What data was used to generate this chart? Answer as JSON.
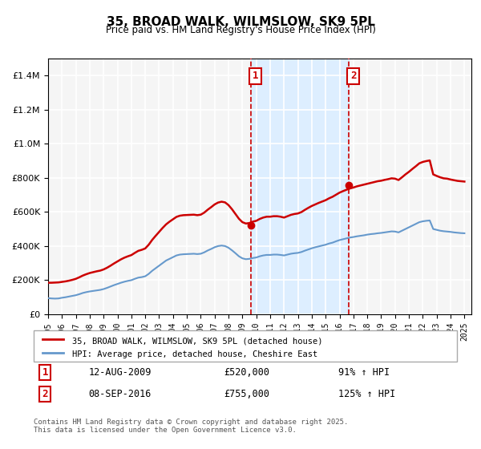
{
  "title": "35, BROAD WALK, WILMSLOW, SK9 5PL",
  "subtitle": "Price paid vs. HM Land Registry's House Price Index (HPI)",
  "legend_label1": "35, BROAD WALK, WILMSLOW, SK9 5PL (detached house)",
  "legend_label2": "HPI: Average price, detached house, Cheshire East",
  "marker1_date": "12-AUG-2009",
  "marker1_price": 520000,
  "marker1_hpi": "91% ↑ HPI",
  "marker2_date": "08-SEP-2016",
  "marker2_price": 755000,
  "marker2_hpi": "125% ↑ HPI",
  "footer": "Contains HM Land Registry data © Crown copyright and database right 2025.\nThis data is licensed under the Open Government Licence v3.0.",
  "line1_color": "#cc0000",
  "line2_color": "#6699cc",
  "shade_color": "#ddeeff",
  "vline_color": "#cc0000",
  "marker_dot_color": "#cc0000",
  "bg_color": "#f5f5f5",
  "grid_color": "#ffffff",
  "ylim": [
    0,
    1500000
  ],
  "xlim_start": 1995.0,
  "xlim_end": 2025.5,
  "marker1_x": 2009.62,
  "marker2_x": 2016.69,
  "hpi_series": {
    "years": [
      1995.0,
      1995.25,
      1995.5,
      1995.75,
      1996.0,
      1996.25,
      1996.5,
      1996.75,
      1997.0,
      1997.25,
      1997.5,
      1997.75,
      1998.0,
      1998.25,
      1998.5,
      1998.75,
      1999.0,
      1999.25,
      1999.5,
      1999.75,
      2000.0,
      2000.25,
      2000.5,
      2000.75,
      2001.0,
      2001.25,
      2001.5,
      2001.75,
      2002.0,
      2002.25,
      2002.5,
      2002.75,
      2003.0,
      2003.25,
      2003.5,
      2003.75,
      2004.0,
      2004.25,
      2004.5,
      2004.75,
      2005.0,
      2005.25,
      2005.5,
      2005.75,
      2006.0,
      2006.25,
      2006.5,
      2006.75,
      2007.0,
      2007.25,
      2007.5,
      2007.75,
      2008.0,
      2008.25,
      2008.5,
      2008.75,
      2009.0,
      2009.25,
      2009.5,
      2009.75,
      2010.0,
      2010.25,
      2010.5,
      2010.75,
      2011.0,
      2011.25,
      2011.5,
      2011.75,
      2012.0,
      2012.25,
      2012.5,
      2012.75,
      2013.0,
      2013.25,
      2013.5,
      2013.75,
      2014.0,
      2014.25,
      2014.5,
      2014.75,
      2015.0,
      2015.25,
      2015.5,
      2015.75,
      2016.0,
      2016.25,
      2016.5,
      2016.75,
      2017.0,
      2017.25,
      2017.5,
      2017.75,
      2018.0,
      2018.25,
      2018.5,
      2018.75,
      2019.0,
      2019.25,
      2019.5,
      2019.75,
      2020.0,
      2020.25,
      2020.5,
      2020.75,
      2021.0,
      2021.25,
      2021.5,
      2021.75,
      2022.0,
      2022.25,
      2022.5,
      2022.75,
      2023.0,
      2023.25,
      2023.5,
      2023.75,
      2024.0,
      2024.25,
      2024.5,
      2024.75,
      2025.0
    ],
    "values": [
      95000,
      93000,
      92000,
      93000,
      97000,
      100000,
      104000,
      108000,
      112000,
      118000,
      125000,
      130000,
      134000,
      137000,
      140000,
      143000,
      148000,
      155000,
      163000,
      171000,
      178000,
      185000,
      191000,
      196000,
      200000,
      208000,
      215000,
      218000,
      223000,
      237000,
      255000,
      270000,
      285000,
      300000,
      315000,
      325000,
      335000,
      345000,
      350000,
      352000,
      353000,
      354000,
      355000,
      353000,
      355000,
      363000,
      374000,
      383000,
      393000,
      400000,
      403000,
      400000,
      390000,
      375000,
      358000,
      340000,
      328000,
      323000,
      325000,
      330000,
      333000,
      340000,
      345000,
      348000,
      348000,
      350000,
      350000,
      348000,
      345000,
      350000,
      355000,
      358000,
      360000,
      365000,
      373000,
      380000,
      387000,
      393000,
      398000,
      403000,
      408000,
      415000,
      420000,
      428000,
      435000,
      440000,
      445000,
      450000,
      453000,
      457000,
      460000,
      463000,
      467000,
      470000,
      472000,
      475000,
      477000,
      480000,
      483000,
      486000,
      485000,
      480000,
      490000,
      500000,
      510000,
      520000,
      530000,
      540000,
      545000,
      548000,
      550000,
      500000,
      495000,
      490000,
      487000,
      485000,
      483000,
      480000,
      478000,
      476000,
      475000
    ]
  },
  "property_series": {
    "years": [
      1995.0,
      1995.25,
      1995.5,
      1995.75,
      1996.0,
      1996.25,
      1996.5,
      1996.75,
      1997.0,
      1997.25,
      1997.5,
      1997.75,
      1998.0,
      1998.25,
      1998.5,
      1998.75,
      1999.0,
      1999.25,
      1999.5,
      1999.75,
      2000.0,
      2000.25,
      2000.5,
      2000.75,
      2001.0,
      2001.25,
      2001.5,
      2001.75,
      2002.0,
      2002.25,
      2002.5,
      2002.75,
      2003.0,
      2003.25,
      2003.5,
      2003.75,
      2004.0,
      2004.25,
      2004.5,
      2004.75,
      2005.0,
      2005.25,
      2005.5,
      2005.75,
      2006.0,
      2006.25,
      2006.5,
      2006.75,
      2007.0,
      2007.25,
      2007.5,
      2007.75,
      2008.0,
      2008.25,
      2008.5,
      2008.75,
      2009.0,
      2009.25,
      2009.5,
      2009.75,
      2010.0,
      2010.25,
      2010.5,
      2010.75,
      2011.0,
      2011.25,
      2011.5,
      2011.75,
      2012.0,
      2012.25,
      2012.5,
      2012.75,
      2013.0,
      2013.25,
      2013.5,
      2013.75,
      2014.0,
      2014.25,
      2014.5,
      2014.75,
      2015.0,
      2015.25,
      2015.5,
      2015.75,
      2016.0,
      2016.25,
      2016.5,
      2016.75,
      2017.0,
      2017.25,
      2017.5,
      2017.75,
      2018.0,
      2018.25,
      2018.5,
      2018.75,
      2019.0,
      2019.25,
      2019.5,
      2019.75,
      2020.0,
      2020.25,
      2020.5,
      2020.75,
      2021.0,
      2021.25,
      2021.5,
      2021.75,
      2022.0,
      2022.25,
      2022.5,
      2022.75,
      2023.0,
      2023.25,
      2023.5,
      2023.75,
      2024.0,
      2024.25,
      2024.5,
      2024.75,
      2025.0
    ],
    "values": [
      185000,
      185000,
      186000,
      187000,
      190000,
      193000,
      197000,
      202000,
      208000,
      217000,
      227000,
      235000,
      242000,
      247000,
      252000,
      256000,
      263000,
      273000,
      285000,
      298000,
      310000,
      322000,
      332000,
      340000,
      347000,
      360000,
      372000,
      378000,
      386000,
      408000,
      436000,
      460000,
      483000,
      506000,
      527000,
      543000,
      557000,
      571000,
      578000,
      581000,
      582000,
      583000,
      584000,
      581000,
      584000,
      596000,
      613000,
      628000,
      644000,
      655000,
      660000,
      656000,
      640000,
      616000,
      588000,
      560000,
      540000,
      532000,
      535000,
      543000,
      548000,
      559000,
      567000,
      572000,
      572000,
      575000,
      575000,
      572000,
      567000,
      575000,
      583000,
      588000,
      591000,
      599000,
      612000,
      624000,
      635000,
      644000,
      653000,
      661000,
      669000,
      680000,
      689000,
      701000,
      713000,
      722000,
      730000,
      738000,
      743000,
      750000,
      755000,
      760000,
      765000,
      770000,
      775000,
      780000,
      783000,
      788000,
      792000,
      797000,
      795000,
      787000,
      803000,
      820000,
      835000,
      852000,
      868000,
      885000,
      893000,
      898000,
      902000,
      820000,
      811000,
      803000,
      797000,
      795000,
      790000,
      786000,
      782000,
      780000,
      778000
    ]
  }
}
